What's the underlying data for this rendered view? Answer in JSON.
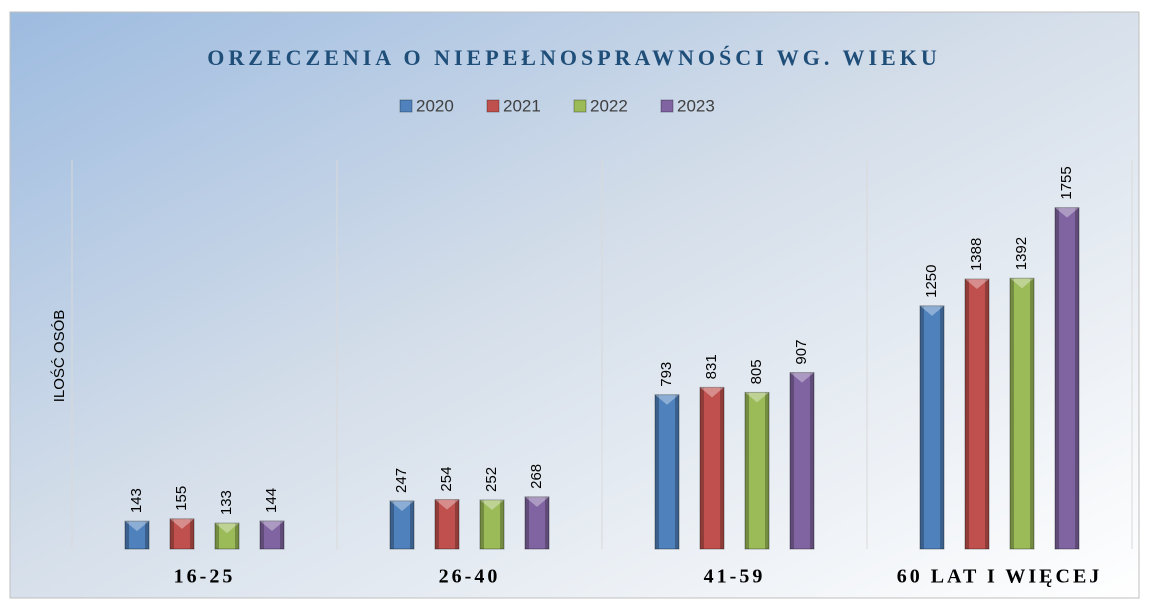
{
  "chart_data": {
    "type": "bar",
    "title": "ORZECZENIA O NIEPEŁNOSPRAWNOŚCI WG. WIEKU",
    "y_label": "ILOŚĆ OSÓB",
    "categories": [
      "16-25",
      "26-40",
      "41-59",
      "60 LAT I WIĘCEJ"
    ],
    "series": [
      {
        "name": "2020",
        "color": "#4f81bd",
        "values": [
          143,
          247,
          793,
          1250
        ]
      },
      {
        "name": "2021",
        "color": "#c0504d",
        "values": [
          155,
          254,
          831,
          1388
        ]
      },
      {
        "name": "2022",
        "color": "#9bbb59",
        "values": [
          133,
          252,
          805,
          1392
        ]
      },
      {
        "name": "2023",
        "color": "#8064a2",
        "values": [
          144,
          268,
          907,
          1755
        ]
      }
    ],
    "ylim": [
      0,
      2000
    ],
    "legend": "top"
  }
}
